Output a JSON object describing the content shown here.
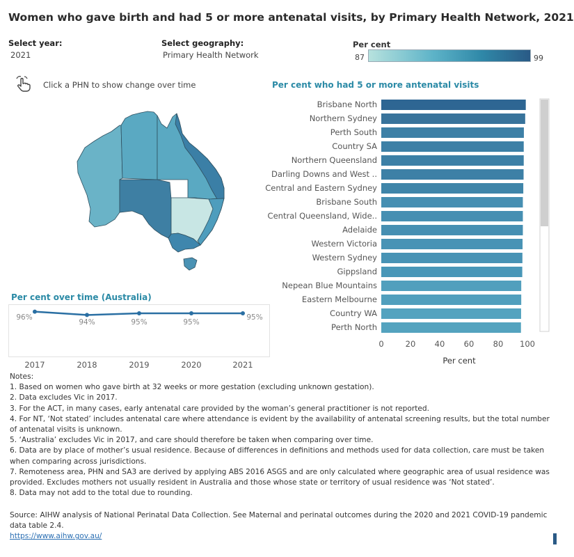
{
  "title": "Women who gave birth and had 5 or more antenatal visits, by Primary Health Network, 2021",
  "controls": {
    "year_label": "Select year:",
    "year_value": "2021",
    "geo_label": "Select geography:",
    "geo_value": "Primary Health Network"
  },
  "legend": {
    "title": "Per cent",
    "min": "87",
    "max": "99",
    "colors": [
      "#b7e2de",
      "#5db3c8",
      "#2f88a8",
      "#2a5a86"
    ]
  },
  "hint": "Click a PHN to show change over time",
  "bar_chart_title": "Per cent who had 5 or more antenatal visits",
  "line_chart_title": "Per cent over time (Australia)",
  "chart_data": [
    {
      "type": "bar",
      "orientation": "horizontal",
      "title": "Per cent who had 5 or more antenatal visits",
      "xlabel": "Per cent",
      "xlim": [
        0,
        100
      ],
      "xticks": [
        "0",
        "20",
        "40",
        "60",
        "80",
        "100"
      ],
      "categories": [
        "Brisbane North",
        "Northern Sydney",
        "Perth South",
        "Country SA",
        "Northern Queensland",
        "Darling Downs and West ..",
        "Central and Eastern Sydney",
        "Brisbane South",
        "Central Queensland, Wide..",
        "Adelaide",
        "Western Victoria",
        "Western Sydney",
        "Gippsland",
        "Nepean Blue Mountains",
        "Eastern Melbourne",
        "Country WA",
        "Perth North"
      ],
      "values": [
        98.9,
        98.5,
        97.6,
        97.5,
        97.5,
        97.4,
        97.2,
        96.9,
        96.9,
        96.9,
        96.7,
        96.6,
        96.5,
        95.8,
        95.8,
        95.7,
        95.6
      ],
      "colors": [
        "#2e6693",
        "#38739b",
        "#3d80a6",
        "#3d80a6",
        "#3d80a6",
        "#3d80a6",
        "#3f85a9",
        "#468fb2",
        "#468fb2",
        "#468fb2",
        "#4893b5",
        "#4893b5",
        "#4997b8",
        "#519fbd",
        "#519fbd",
        "#54a3bf",
        "#54a3bf"
      ]
    },
    {
      "type": "line",
      "title": "Per cent over time (Australia)",
      "categories": [
        "2017",
        "2018",
        "2019",
        "2020",
        "2021"
      ],
      "values": [
        96,
        94,
        95,
        95,
        95
      ],
      "data_labels": [
        "96%",
        "94%",
        "95%",
        "95%",
        "95%"
      ],
      "color": "#2a6fa3"
    }
  ],
  "notes": {
    "heading": "Notes:",
    "items": [
      "1. Based on women who gave birth at 32 weeks or more gestation (excluding unknown gestation).",
      "2. Data excludes Vic in 2017.",
      "3. For the ACT, in many cases, early antenatal care provided by the woman’s general practitioner is not reported.",
      "4. For NT, ‘Not stated’ includes antenatal care where attendance is evident by the availability of antenatal screening results, but the total number of antenatal visits is unknown.",
      "5. ‘Australia’ excludes Vic in 2017, and care should therefore be taken when comparing over time.",
      "6. Data are by place of mother’s usual residence. Because of differences in definitions and methods used for data collection, care must be taken when comparing across jurisdictions.",
      "7. Remoteness area, PHN and SA3 are derived by applying ABS 2016 ASGS and are only calculated where geographic area of usual residence was provided. Excludes mothers not usually resident in Australia and those whose state or territory of usual residence was ‘Not stated’.",
      "8. Data may not add to the total due to rounding."
    ]
  },
  "source": {
    "text": "Source: AIHW analysis of National Perinatal Data Collection. See Maternal and perinatal outcomes during the 2020 and 2021 COVID-19 pandemic data table 2.4.",
    "link": "https://www.aihw.gov.au/"
  },
  "map_colors": {
    "wa": "#6ab3c7",
    "nt": "#5aa9c2",
    "qld": "#5aa9c2",
    "qld_coast": "#3b7fa6",
    "sa": "#3e7fa3",
    "nsw": "#c8e6e4",
    "nsw_coast": "#4e9dbd",
    "vic": "#3f86ad",
    "tas": "#4a92b4",
    "border": "#2f4f5f"
  }
}
